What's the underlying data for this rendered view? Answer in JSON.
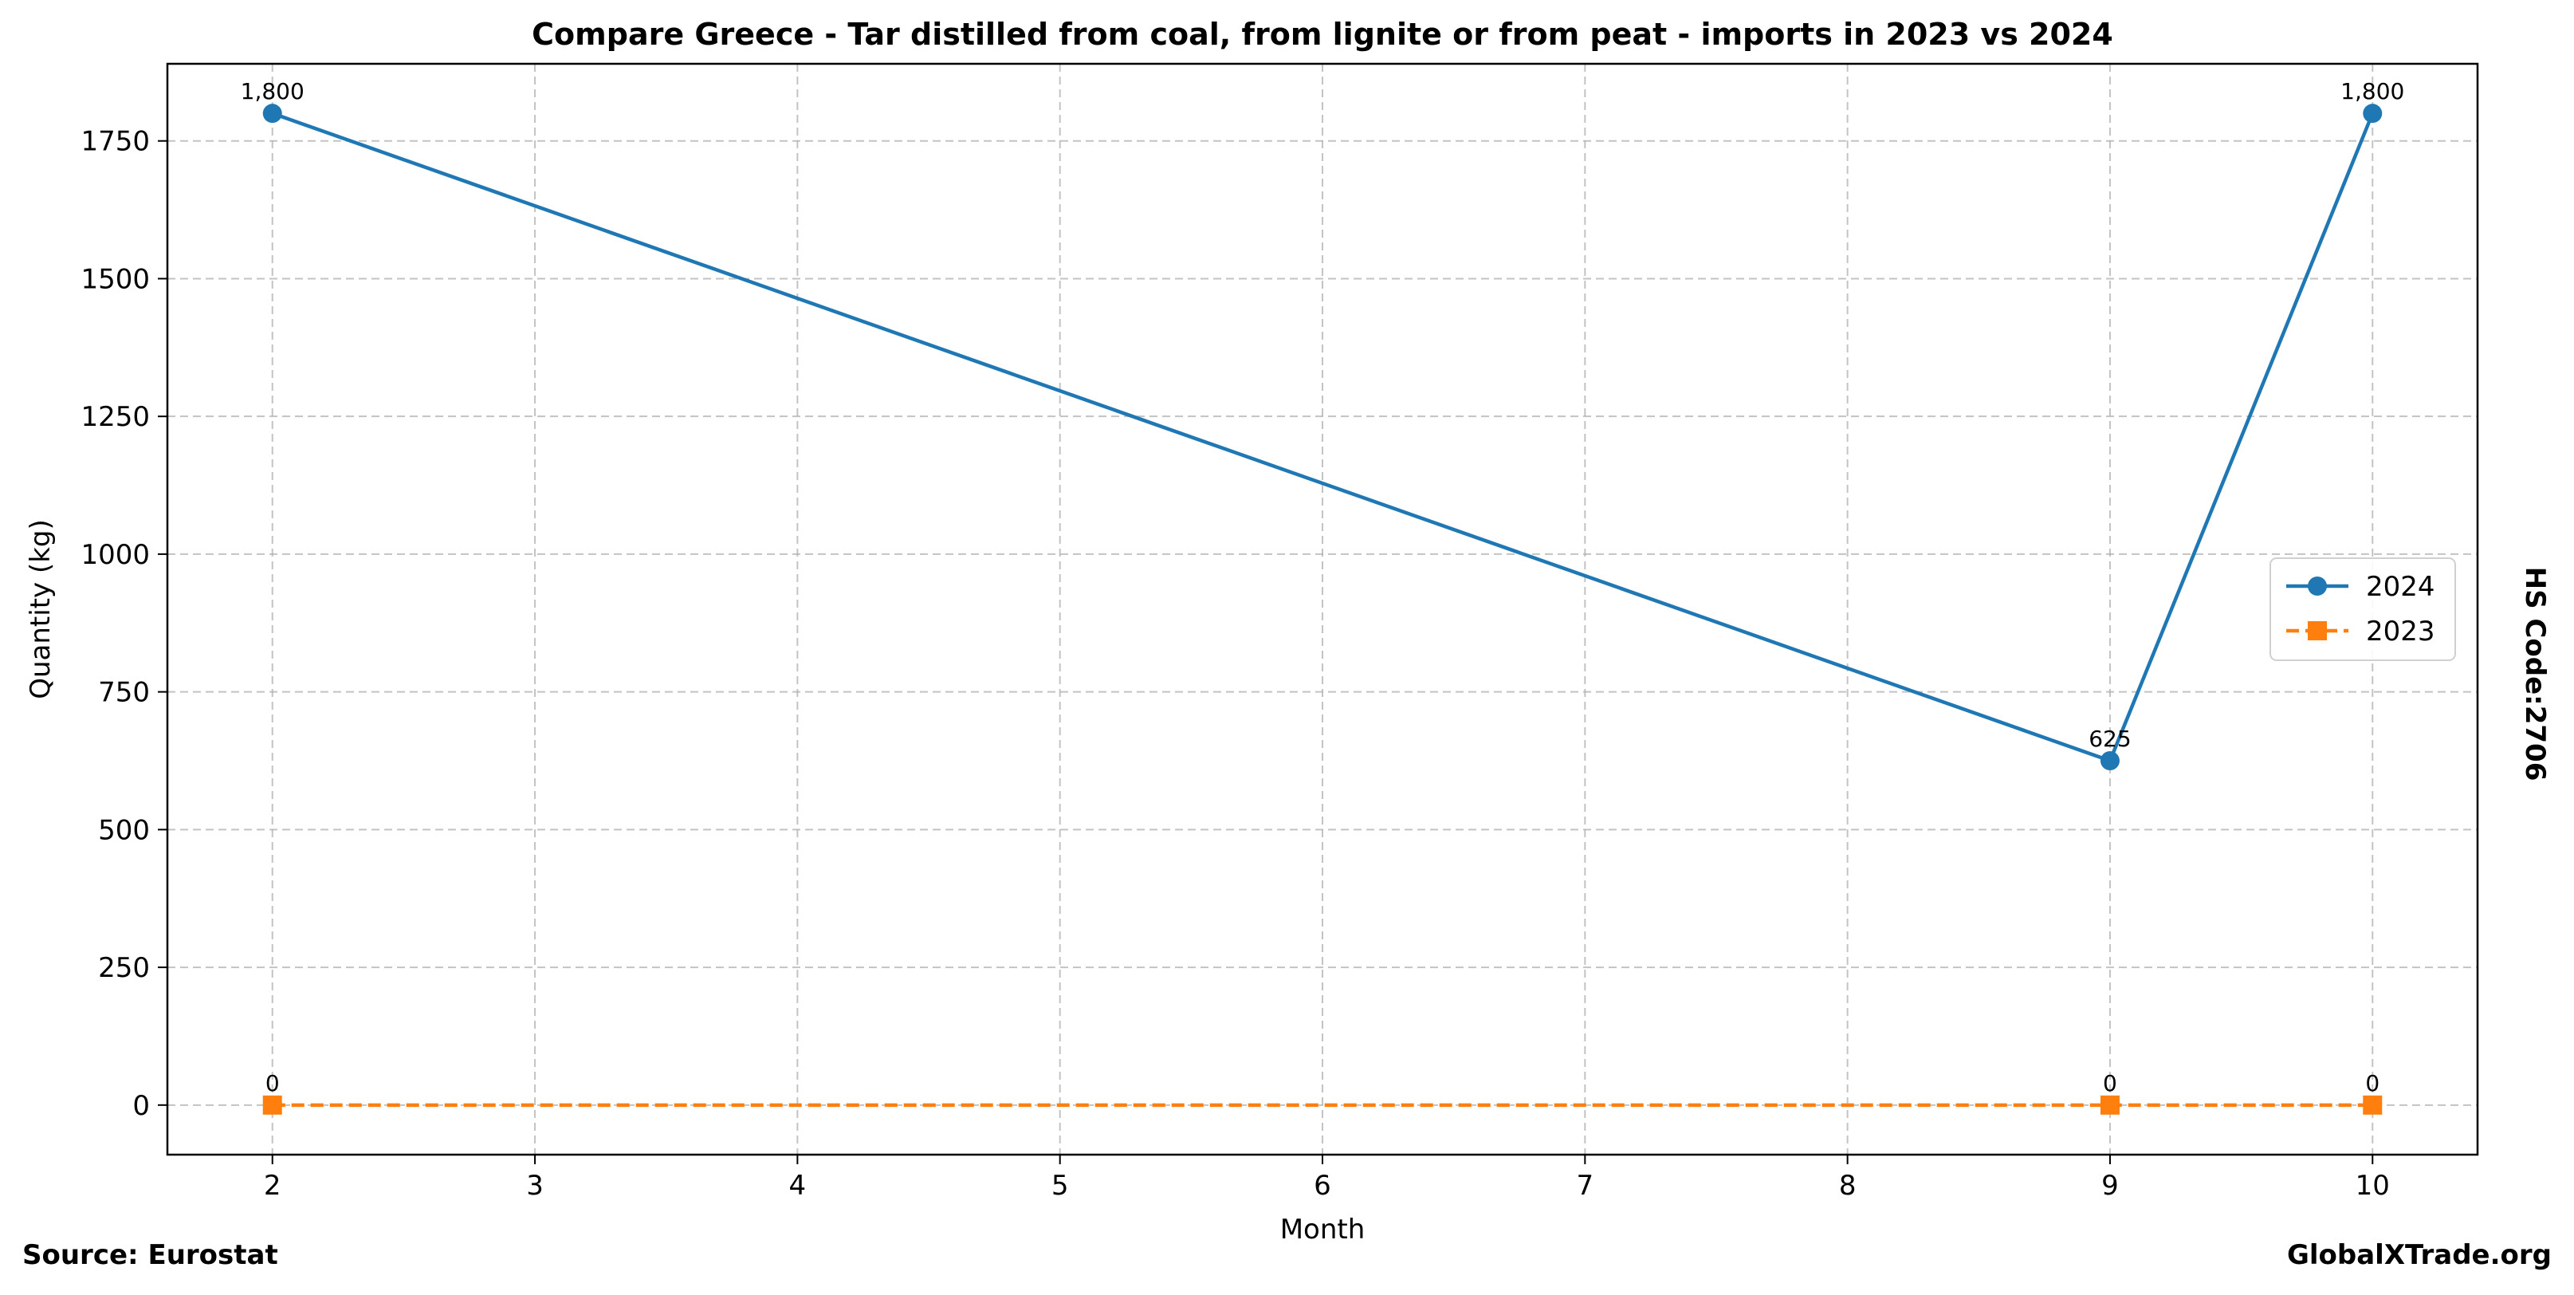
{
  "chart_data": {
    "type": "line",
    "title": "Compare Greece - Tar distilled from coal, from lignite or from peat - imports in 2023 vs 2024",
    "xlabel": "Month",
    "ylabel": "Quantity (kg)",
    "xlim": [
      1.6,
      10.4
    ],
    "ylim": [
      -90,
      1890
    ],
    "x_ticks": [
      2,
      3,
      4,
      5,
      6,
      7,
      8,
      9,
      10
    ],
    "y_ticks": [
      0,
      250,
      500,
      750,
      1000,
      1250,
      1500,
      1750
    ],
    "grid": true,
    "legend_position": "center-right",
    "series": [
      {
        "name": "2024",
        "color": "#1f77b4",
        "line_style": "solid",
        "marker": "circle",
        "points": [
          {
            "x": 2,
            "y": 1800,
            "label": "1,800"
          },
          {
            "x": 9,
            "y": 625,
            "label": "625"
          },
          {
            "x": 10,
            "y": 1800,
            "label": "1,800"
          }
        ]
      },
      {
        "name": "2023",
        "color": "#ff7f0e",
        "line_style": "dashed",
        "marker": "square",
        "points": [
          {
            "x": 2,
            "y": 0,
            "label": "0"
          },
          {
            "x": 9,
            "y": 0,
            "label": "0"
          },
          {
            "x": 10,
            "y": 0,
            "label": "0"
          }
        ]
      }
    ]
  },
  "footer": {
    "source": "Source: Eurostat",
    "brand": "GlobalXTrade.org",
    "hs_code": "HS Code:2706"
  }
}
